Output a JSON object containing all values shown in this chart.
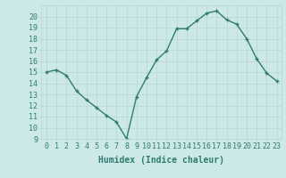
{
  "title": "",
  "xlabel": "Humidex (Indice chaleur)",
  "x": [
    0,
    1,
    2,
    3,
    4,
    5,
    6,
    7,
    8,
    9,
    10,
    11,
    12,
    13,
    14,
    15,
    16,
    17,
    18,
    19,
    20,
    21,
    22,
    23
  ],
  "y": [
    15.0,
    15.2,
    14.7,
    13.3,
    12.5,
    11.8,
    11.1,
    10.5,
    9.0,
    12.8,
    14.5,
    16.1,
    16.9,
    18.9,
    18.9,
    19.6,
    20.3,
    20.5,
    19.7,
    19.3,
    18.0,
    16.2,
    14.9,
    14.2
  ],
  "ylim": [
    9,
    21
  ],
  "yticks": [
    9,
    10,
    11,
    12,
    13,
    14,
    15,
    16,
    17,
    18,
    19,
    20
  ],
  "line_color": "#2e7d6e",
  "marker": "+",
  "bg_color": "#cce8e8",
  "grid_color": "#b8d4d4",
  "tick_label_color": "#2e7d6e",
  "xlabel_color": "#2e7d6e",
  "xlabel_fontsize": 7,
  "tick_fontsize": 6,
  "linewidth": 1.0,
  "markersize": 3.5,
  "markeredgewidth": 1.0
}
